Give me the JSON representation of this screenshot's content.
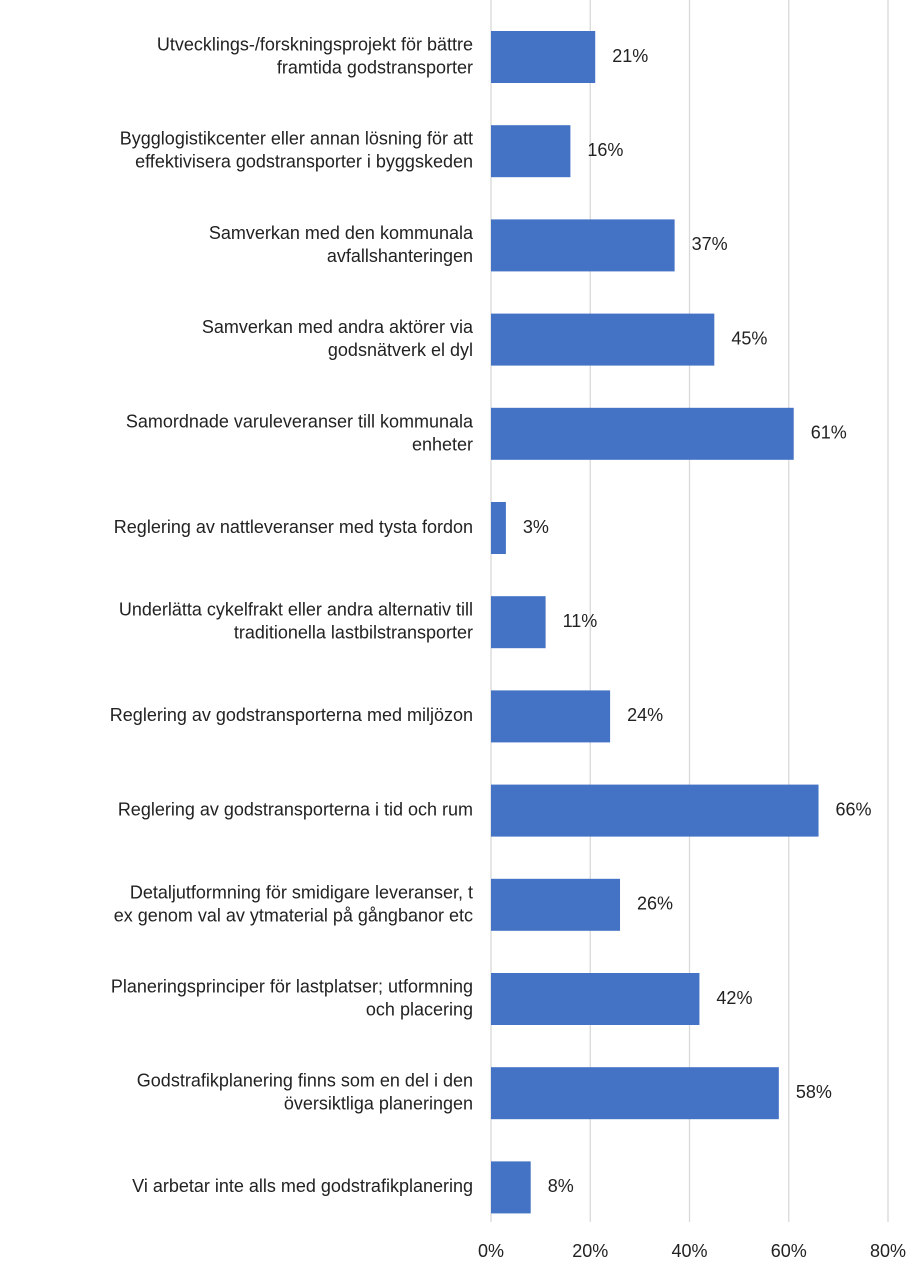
{
  "chart_data": {
    "type": "bar",
    "orientation": "horizontal",
    "categories": [
      "Utvecklings-/forskningsprojekt för bättre\nframtida godstransporter",
      "Bygglogistikcenter eller annan lösning för att\neffektivisera godstransporter i byggskeden",
      "Samverkan med den kommunala\navfallshanteringen",
      "Samverkan med andra aktörer via\ngodsnätverk el dyl",
      "Samordnade varuleveranser till kommunala\nenheter",
      "Reglering av nattleveranser med tysta fordon",
      "Underlätta cykelfrakt eller andra alternativ till\ntraditionella lastbilstransporter",
      "Reglering av godstransporterna med miljözon",
      "Reglering av godstransporterna i tid och rum",
      "Detaljutformning för smidigare leveranser, t\nex genom val av ytmaterial på gångbanor etc",
      "Planeringsprinciper för lastplatser; utformning\noch placering",
      "Godstrafikplanering finns som en del i den\növersiktliga planeringen",
      "Vi arbetar inte alls med godstrafikplanering"
    ],
    "values": [
      21,
      16,
      37,
      45,
      61,
      3,
      11,
      24,
      66,
      26,
      42,
      58,
      8
    ],
    "value_labels": [
      "21%",
      "16%",
      "37%",
      "45%",
      "61%",
      "3%",
      "11%",
      "24%",
      "66%",
      "26%",
      "42%",
      "58%",
      "8%"
    ],
    "color": "#4472c4",
    "xlim": [
      0,
      80
    ],
    "xticks": [
      {
        "value": 0,
        "label": "0%"
      },
      {
        "value": 20,
        "label": "20%"
      },
      {
        "value": 40,
        "label": "40%"
      },
      {
        "value": 60,
        "label": "60%"
      },
      {
        "value": 80,
        "label": "80%"
      }
    ],
    "grid": true
  }
}
